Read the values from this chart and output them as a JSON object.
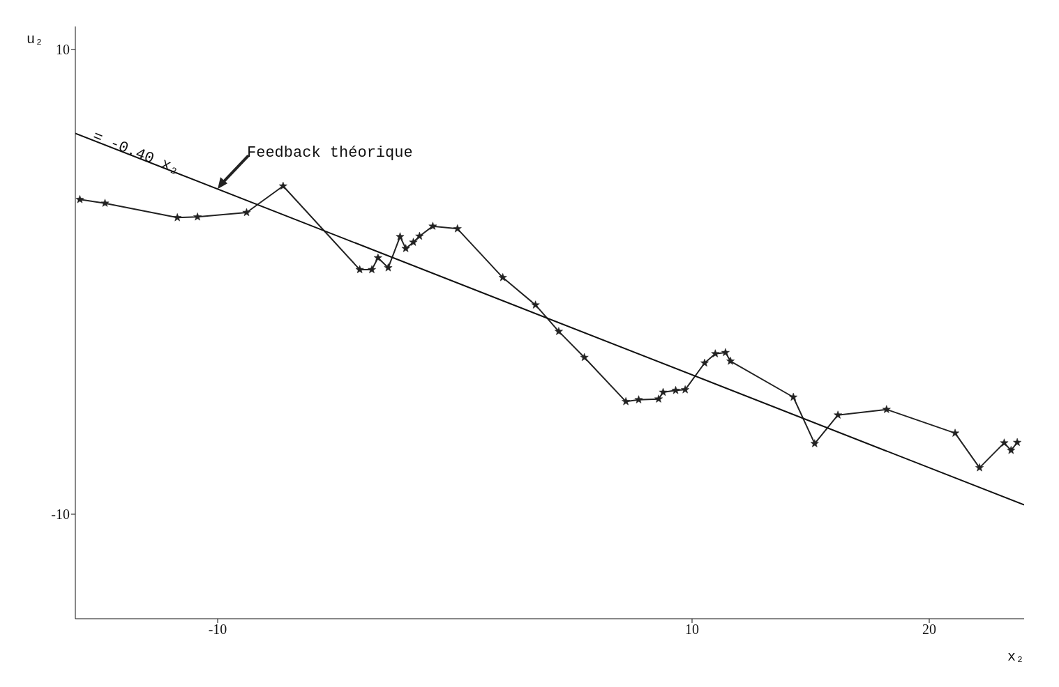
{
  "chart_data": {
    "type": "line",
    "xlabel": "x₂",
    "ylabel": "u₂",
    "xlim": [
      -16,
      24
    ],
    "ylim": [
      -14.5,
      11
    ],
    "xticks": [
      -10,
      10,
      20
    ],
    "yticks": [
      -10,
      10
    ],
    "grid": false,
    "marker": "star",
    "line_style": "solid",
    "series": [
      {
        "color": "#222222",
        "x": [
          -15.81,
          -14.75,
          -11.7,
          -10.85,
          -8.78,
          -7.24,
          -4.01,
          -3.5,
          -3.24,
          -2.81,
          -2.31,
          -2.07,
          -1.75,
          -1.49,
          -0.93,
          0.11,
          2.02,
          3.4,
          4.38,
          5.46,
          7.21,
          7.75,
          8.59,
          8.78,
          9.31,
          9.71,
          10.53,
          10.98,
          11.41,
          11.62,
          14.27,
          15.17,
          16.15,
          18.2,
          21.09,
          22.12,
          23.16,
          23.45,
          23.71
        ],
        "values": [
          3.55,
          3.39,
          2.77,
          2.8,
          2.99,
          4.13,
          0.53,
          0.53,
          1.04,
          0.61,
          1.95,
          1.44,
          1.71,
          1.97,
          2.4,
          2.29,
          0.19,
          -0.99,
          -2.13,
          -3.25,
          -5.15,
          -5.07,
          -5.04,
          -4.75,
          -4.67,
          -4.64,
          -3.49,
          -3.09,
          -3.04,
          -3.41,
          -4.96,
          -6.96,
          -5.73,
          -5.49,
          -6.51,
          -8.0,
          -6.93,
          -7.25,
          -6.91
        ]
      },
      {
        "color": "#111111",
        "marker": "none",
        "x": [
          -16,
          24
        ],
        "values": [
          6.4,
          -9.6
        ]
      }
    ],
    "annotations": [
      {
        "text": "Feedback théorique",
        "x": -10,
        "y": 4
      },
      {
        "text": "= -0.40 x₂",
        "x": -13.5,
        "y": 5.4
      }
    ]
  }
}
